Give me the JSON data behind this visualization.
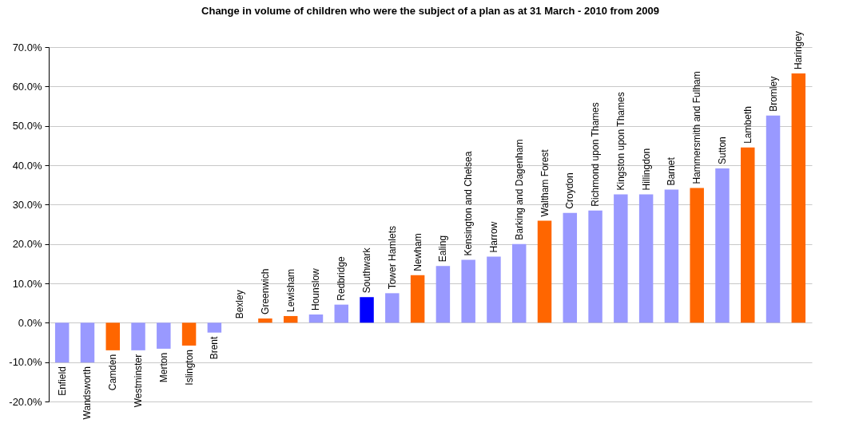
{
  "chart_data": {
    "type": "bar",
    "title": "Change in volume of children who were the subject of a plan as at 31 March - 2010 from 2009",
    "categories": [
      "Enfield",
      "Wandsworth",
      "Camden",
      "Westminster",
      "Merton",
      "Islington",
      "Brent",
      "Bexley",
      "Greenwich",
      "Lewisham",
      "Hounslow",
      "Redbridge",
      "Southwark",
      "Tower Hamlets",
      "Newham",
      "Ealing",
      "Kensington and Chelsea",
      "Harrow",
      "Barking and Dagenham",
      "Waltham Forest",
      "Croydon",
      "Richmond upon Thames",
      "Kingston upon Thames",
      "Hillingdon",
      "Barnet",
      "Hammersmith and Fulham",
      "Sutton",
      "Lambeth",
      "Bromley",
      "Haringey"
    ],
    "values": [
      -10.1,
      -10.1,
      -7.0,
      -7.0,
      -6.6,
      -5.8,
      -2.5,
      0,
      1.1,
      1.7,
      2.1,
      4.6,
      6.5,
      7.5,
      12.1,
      14.4,
      16.0,
      16.8,
      20.0,
      25.9,
      27.9,
      28.5,
      32.6,
      32.6,
      33.8,
      34.2,
      39.2,
      44.5,
      52.6,
      63.3
    ],
    "colors": [
      "#9999ff",
      "#9999ff",
      "#ff6600",
      "#9999ff",
      "#9999ff",
      "#ff6600",
      "#9999ff",
      "#9999ff",
      "#ff6600",
      "#ff6600",
      "#9999ff",
      "#9999ff",
      "#0000ff",
      "#9999ff",
      "#ff6600",
      "#9999ff",
      "#9999ff",
      "#9999ff",
      "#9999ff",
      "#ff6600",
      "#9999ff",
      "#9999ff",
      "#9999ff",
      "#9999ff",
      "#9999ff",
      "#ff6600",
      "#9999ff",
      "#ff6600",
      "#9999ff",
      "#ff6600"
    ],
    "ylim": [
      -20,
      70
    ],
    "yticks": [
      {
        "value": -20,
        "label": "-20.0%"
      },
      {
        "value": -10,
        "label": "-10.0%"
      },
      {
        "value": 0,
        "label": "0.0%"
      },
      {
        "value": 10,
        "label": "10.0%"
      },
      {
        "value": 20,
        "label": "20.0%"
      },
      {
        "value": 30,
        "label": "30.0%"
      },
      {
        "value": 40,
        "label": "40.0%"
      },
      {
        "value": 50,
        "label": "50.0%"
      },
      {
        "value": 60,
        "label": "60.0%"
      },
      {
        "value": 70,
        "label": "70.0%"
      }
    ],
    "grid": "y",
    "tick_labels": "y",
    "legend": false
  }
}
